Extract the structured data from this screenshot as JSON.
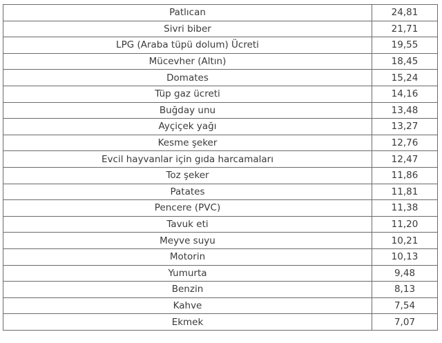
{
  "rows": [
    {
      "item": "Patlıcan",
      "value": "24,81"
    },
    {
      "item": "Sivri biber",
      "value": "21,71"
    },
    {
      "item": "LPG (Araba tüpü dolum) Ücreti",
      "value": "19,55"
    },
    {
      "item": "Mücevher (Altın)",
      "value": "18,45"
    },
    {
      "item": "Domates",
      "value": "15,24"
    },
    {
      "item": "Tüp gaz ücreti",
      "value": "14,16"
    },
    {
      "item": "Buğday unu",
      "value": "13,48"
    },
    {
      "item": "Ayçiçek yağı",
      "value": "13,27"
    },
    {
      "item": "Kesme şeker",
      "value": "12,76"
    },
    {
      "item": "Evcil hayvanlar için gıda harcamaları",
      "value": "12,47"
    },
    {
      "item": "Toz şeker",
      "value": "11,86"
    },
    {
      "item": "Patates",
      "value": "11,81"
    },
    {
      "item": "Pencere (PVC)",
      "value": "11,38"
    },
    {
      "item": "Tavuk eti",
      "value": "11,20"
    },
    {
      "item": "Meyve suyu",
      "value": "10,21"
    },
    {
      "item": "Motorin",
      "value": "10,13"
    },
    {
      "item": "Yumurta",
      "value": "9,48"
    },
    {
      "item": "Benzin",
      "value": "8,13"
    },
    {
      "item": "Kahve",
      "value": "7,54"
    },
    {
      "item": "Ekmek",
      "value": "7,07"
    }
  ]
}
